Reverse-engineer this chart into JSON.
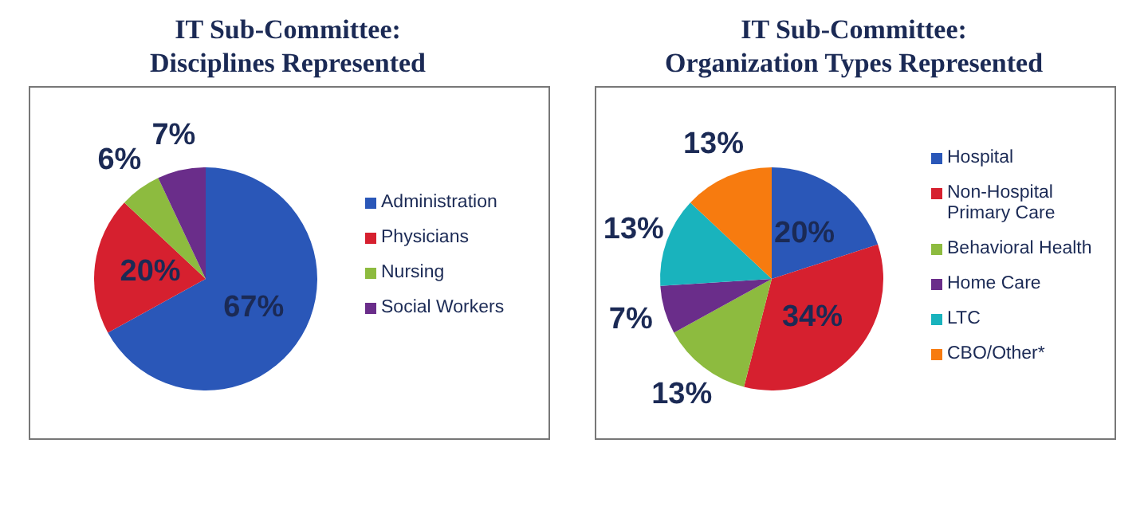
{
  "chart_data": [
    {
      "type": "pie",
      "title": "IT Sub-Committee:\nDisciplines Represented",
      "categories": [
        "Administration",
        "Physicians",
        "Nursing",
        "Social Workers"
      ],
      "values": [
        67,
        20,
        6,
        7
      ],
      "colors": [
        "#2a57b8",
        "#d6202f",
        "#8dbb3f",
        "#6a2d8a"
      ],
      "value_labels": [
        "67%",
        "20%",
        "6%",
        "7%"
      ],
      "legend": "right"
    },
    {
      "type": "pie",
      "title": "IT Sub-Committee:\nOrganization Types Represented",
      "categories": [
        "Hospital",
        "Non-Hospital Primary Care",
        "Behavioral Health",
        "Home Care",
        "LTC",
        "CBO/Other*"
      ],
      "values": [
        20,
        34,
        13,
        7,
        13,
        13
      ],
      "colors": [
        "#2a57b8",
        "#d6202f",
        "#8dbb3f",
        "#6a2d8a",
        "#19b3bd",
        "#f77b0f"
      ],
      "value_labels": [
        "20%",
        "34%",
        "13%",
        "7%",
        "13%",
        "13%"
      ],
      "legend": "right"
    }
  ]
}
